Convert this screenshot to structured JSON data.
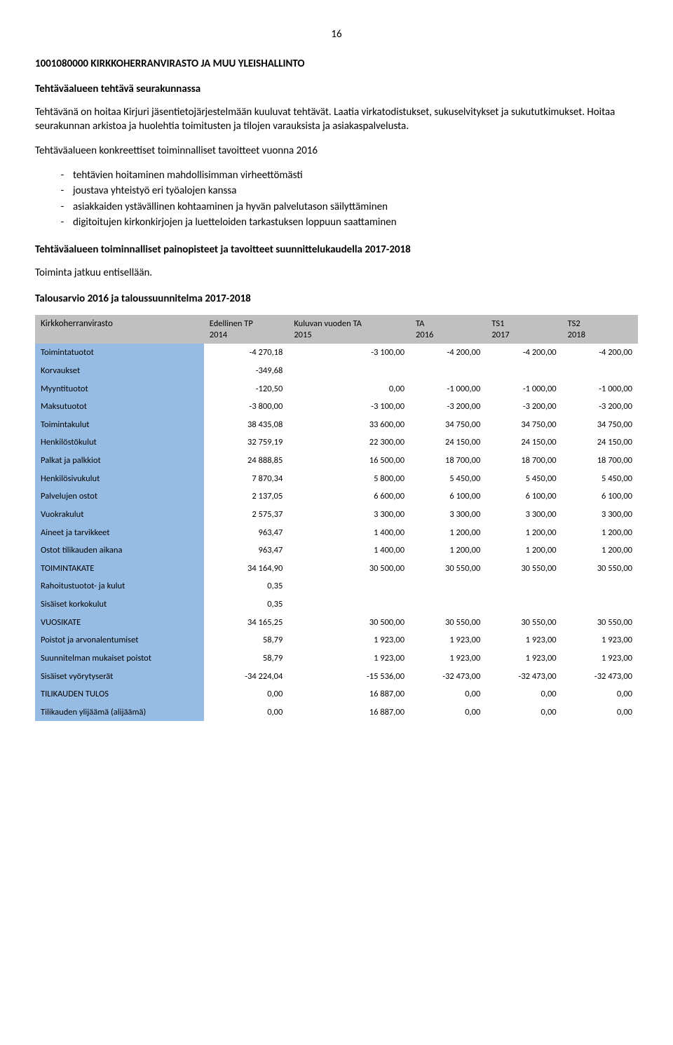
{
  "page_number": "16",
  "heading": "1001080000 KIRKKOHERRANVIRASTO JA MUU YLEISHALLINTO",
  "section1_title": "Tehtäväalueen tehtävä seurakunnassa",
  "section1_para": "Tehtävänä on hoitaa Kirjuri jäsentietojärjestelmään kuuluvat tehtävät. Laatia virkatodistukset, sukuselvitykset ja sukututkimukset. Hoitaa seurakunnan arkistoa ja huolehtia toimitusten ja tilojen varauksista ja asiakaspalvelusta.",
  "section2_title": "Tehtäväalueen konkreettiset toiminnalliset tavoitteet vuonna 2016",
  "bullets": [
    "tehtävien hoitaminen mahdollisimman virheettömästi",
    "joustava yhteistyö eri työalojen kanssa",
    "asiakkaiden ystävällinen kohtaaminen ja hyvän palvelutason säilyttäminen",
    "digitoitujen kirkonkirjojen ja luetteloiden tarkastuksen loppuun saattaminen"
  ],
  "section3_title": "Tehtäväalueen toiminnalliset painopisteet ja tavoitteet suunnittelukaudella 2017-2018",
  "section3_para": "Toiminta jatkuu entisellään.",
  "section4_title": "Talousarvio 2016 ja taloussuunnitelma 2017-2018",
  "table": {
    "header_left": "Kirkkoherranvirasto",
    "columns": [
      "Edellinen TP\n2014",
      "Kuluvan vuoden TA\n2015",
      "TA\n2016",
      "TS1\n2017",
      "TS2\n2018"
    ],
    "rows": [
      {
        "label": "Toimintatuotot",
        "vals": [
          "-4 270,18",
          "-3 100,00",
          "-4 200,00",
          "-4 200,00",
          "-4 200,00"
        ]
      },
      {
        "label": "Korvaukset",
        "vals": [
          "-349,68",
          "",
          "",
          "",
          ""
        ]
      },
      {
        "label": "Myyntituotot",
        "vals": [
          "-120,50",
          "0,00",
          "-1 000,00",
          "-1 000,00",
          "-1 000,00"
        ]
      },
      {
        "label": "Maksutuotot",
        "vals": [
          "-3 800,00",
          "-3 100,00",
          "-3 200,00",
          "-3 200,00",
          "-3 200,00"
        ]
      },
      {
        "label": "Toimintakulut",
        "vals": [
          "38 435,08",
          "33 600,00",
          "34 750,00",
          "34 750,00",
          "34 750,00"
        ]
      },
      {
        "label": "Henkilöstökulut",
        "vals": [
          "32 759,19",
          "22 300,00",
          "24 150,00",
          "24 150,00",
          "24 150,00"
        ]
      },
      {
        "label": "Palkat ja palkkiot",
        "vals": [
          "24 888,85",
          "16 500,00",
          "18 700,00",
          "18 700,00",
          "18 700,00"
        ]
      },
      {
        "label": "Henkilösivukulut",
        "vals": [
          "7 870,34",
          "5 800,00",
          "5 450,00",
          "5 450,00",
          "5 450,00"
        ]
      },
      {
        "label": "Palvelujen ostot",
        "vals": [
          "2 137,05",
          "6 600,00",
          "6 100,00",
          "6 100,00",
          "6 100,00"
        ]
      },
      {
        "label": "Vuokrakulut",
        "vals": [
          "2 575,37",
          "3 300,00",
          "3 300,00",
          "3 300,00",
          "3 300,00"
        ]
      },
      {
        "label": "Aineet ja tarvikkeet",
        "vals": [
          "963,47",
          "1 400,00",
          "1 200,00",
          "1 200,00",
          "1 200,00"
        ]
      },
      {
        "label": "Ostot tilikauden aikana",
        "vals": [
          "963,47",
          "1 400,00",
          "1 200,00",
          "1 200,00",
          "1 200,00"
        ]
      },
      {
        "label": "TOIMINTAKATE",
        "vals": [
          "34 164,90",
          "30 500,00",
          "30 550,00",
          "30 550,00",
          "30 550,00"
        ]
      },
      {
        "label": "Rahoitustuotot- ja kulut",
        "vals": [
          "0,35",
          "",
          "",
          "",
          ""
        ]
      },
      {
        "label": "Sisäiset korkokulut",
        "vals": [
          "0,35",
          "",
          "",
          "",
          ""
        ]
      },
      {
        "label": "VUOSIKATE",
        "vals": [
          "34 165,25",
          "30 500,00",
          "30 550,00",
          "30 550,00",
          "30 550,00"
        ]
      },
      {
        "label": "Poistot ja arvonalentumiset",
        "vals": [
          "58,79",
          "1 923,00",
          "1 923,00",
          "1 923,00",
          "1 923,00"
        ]
      },
      {
        "label": "Suunnitelman mukaiset poistot",
        "vals": [
          "58,79",
          "1 923,00",
          "1 923,00",
          "1 923,00",
          "1 923,00"
        ]
      },
      {
        "label": "Sisäiset vyörytyserät",
        "vals": [
          "-34 224,04",
          "-15 536,00",
          "-32 473,00",
          "-32 473,00",
          "-32 473,00"
        ]
      },
      {
        "label": "TILIKAUDEN TULOS",
        "vals": [
          "0,00",
          "16 887,00",
          "0,00",
          "0,00",
          "0,00"
        ]
      },
      {
        "label": "Tilikauden ylijäämä (alijäämä)",
        "vals": [
          "0,00",
          "16 887,00",
          "0,00",
          "0,00",
          "0,00"
        ]
      }
    ]
  },
  "colors": {
    "header_bg": "#c0c0c0",
    "label_bg": "#97bce4"
  }
}
